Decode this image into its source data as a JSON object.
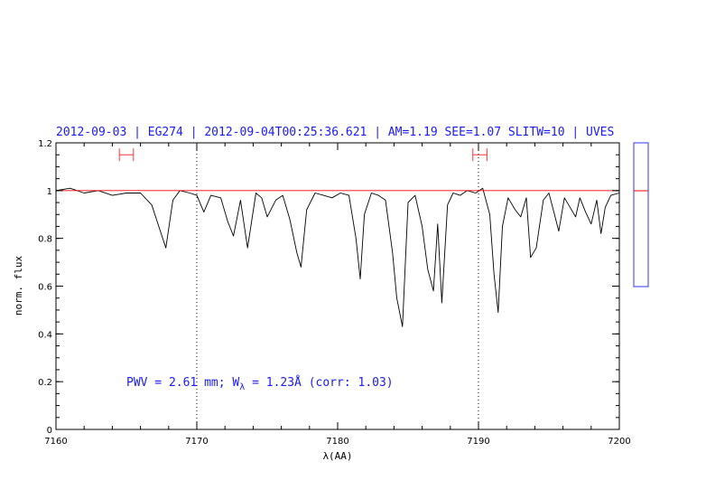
{
  "chart_data": {
    "type": "line",
    "title": "2012-09-03 | EG274 | 2012-09-04T00:25:36.621 | AM=1.19  SEE=1.07  SLITW=10 | UVES",
    "xlabel": "λ(AA)",
    "ylabel": "norm. flux",
    "xlim": [
      7160,
      7200
    ],
    "ylim": [
      0,
      1.2
    ],
    "x_ticks": [
      "7160",
      "7170",
      "7180",
      "7190",
      "7200"
    ],
    "x_tick_values": [
      7160,
      7170,
      7180,
      7190,
      7200
    ],
    "y_ticks": [
      "0",
      "0.2",
      "0.4",
      "0.6",
      "0.8",
      "1",
      "1.2"
    ],
    "y_tick_values": [
      0,
      0.2,
      0.4,
      0.6,
      0.8,
      1.0,
      1.2
    ],
    "grid": false,
    "continuum_level": 1.0,
    "vertical_markers": [
      7170,
      7190
    ],
    "range_markers": [
      {
        "from": 7164.5,
        "to": 7165.5,
        "y": 1.15
      },
      {
        "from": 7189.6,
        "to": 7190.6,
        "y": 1.15
      }
    ],
    "annotation": {
      "prefix": "PWV = 2.61 mm; W",
      "subscript": "λ",
      "suffix": " = 1.23Å (corr: 1.03)"
    },
    "side_panel": {
      "marker_level": 1.0
    },
    "series": [
      {
        "color": "#000000",
        "x": [
          7160,
          7161,
          7162,
          7163,
          7164,
          7165,
          7166,
          7166.8,
          7167.3,
          7167.8,
          7168.3,
          7168.8,
          7169.5,
          7170,
          7170.5,
          7171,
          7171.7,
          7172.2,
          7172.6,
          7173.1,
          7173.6,
          7174.2,
          7174.6,
          7175,
          7175.6,
          7176.1,
          7176.6,
          7177.1,
          7177.4,
          7177.8,
          7178.4,
          7179,
          7179.6,
          7180.2,
          7180.8,
          7181.3,
          7181.6,
          7181.9,
          7182.4,
          7182.9,
          7183.4,
          7183.9,
          7184.2,
          7184.6,
          7185,
          7185.5,
          7186,
          7186.4,
          7186.8,
          7187.1,
          7187.4,
          7187.8,
          7188.2,
          7188.7,
          7189.2,
          7189.8,
          7190.3,
          7190.8,
          7191.1,
          7191.4,
          7191.7,
          7192.1,
          7192.6,
          7193,
          7193.4,
          7193.7,
          7194.1,
          7194.6,
          7195,
          7195.4,
          7195.7,
          7196.1,
          7196.5,
          7196.9,
          7197.2,
          7197.6,
          7198,
          7198.4,
          7198.7,
          7199,
          7199.4,
          7200
        ],
        "y": [
          1.0,
          1.01,
          0.99,
          1.0,
          0.98,
          0.99,
          0.99,
          0.94,
          0.85,
          0.76,
          0.96,
          1.0,
          0.99,
          0.98,
          0.91,
          0.98,
          0.97,
          0.87,
          0.81,
          0.96,
          0.76,
          0.99,
          0.97,
          0.89,
          0.96,
          0.98,
          0.88,
          0.74,
          0.68,
          0.92,
          0.99,
          0.98,
          0.97,
          0.99,
          0.98,
          0.8,
          0.63,
          0.9,
          0.99,
          0.98,
          0.96,
          0.74,
          0.55,
          0.43,
          0.95,
          0.98,
          0.85,
          0.67,
          0.58,
          0.86,
          0.53,
          0.94,
          0.99,
          0.98,
          1.0,
          0.99,
          1.01,
          0.9,
          0.65,
          0.49,
          0.85,
          0.97,
          0.92,
          0.89,
          0.97,
          0.72,
          0.76,
          0.96,
          0.99,
          0.9,
          0.83,
          0.97,
          0.93,
          0.89,
          0.97,
          0.91,
          0.86,
          0.96,
          0.82,
          0.93,
          0.98,
          0.99
        ]
      },
      {
        "color": "#ff0000",
        "x": [
          7160,
          7200
        ],
        "y": [
          1.0,
          1.0
        ]
      }
    ]
  }
}
